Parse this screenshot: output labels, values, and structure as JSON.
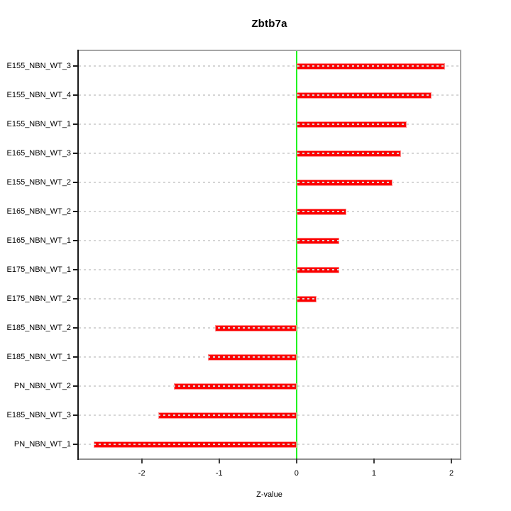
{
  "title": "Zbtb7a",
  "chart_data": {
    "type": "bar",
    "orientation": "horizontal",
    "title": "Zbtb7a",
    "xlabel": "Z-value",
    "ylabel": "",
    "categories": [
      "E155_NBN_WT_3",
      "E155_NBN_WT_4",
      "E155_NBN_WT_1",
      "E165_NBN_WT_3",
      "E155_NBN_WT_2",
      "E165_NBN_WT_2",
      "E165_NBN_WT_1",
      "E175_NBN_WT_1",
      "E175_NBN_WT_2",
      "E185_NBN_WT_2",
      "E185_NBN_WT_1",
      "PN_NBN_WT_2",
      "E185_NBN_WT_3",
      "PN_NBN_WT_1"
    ],
    "values": [
      1.92,
      1.74,
      1.42,
      1.35,
      1.24,
      0.64,
      0.55,
      0.55,
      0.26,
      -1.05,
      -1.14,
      -1.58,
      -1.79,
      -2.62
    ],
    "xticks": [
      -2,
      -1,
      0,
      1,
      2
    ],
    "xlim": [
      -2.813,
      2.11
    ],
    "grid": "dotted-horizontal",
    "legend_position": "none",
    "bar_color": "#fb0000",
    "bar_edge_color": "#ff9090",
    "zero_line_color": "#21f421",
    "gridline_color": "#d6d6d6",
    "axis_box_color": "#a6a6a6",
    "left_axis_color": "#1a1a1a"
  }
}
